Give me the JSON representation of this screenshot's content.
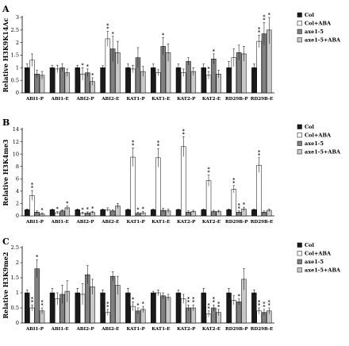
{
  "colors": {
    "Col": "#1a1a1a",
    "Col+ABA": "#ffffff",
    "axe1-5": "#808080",
    "axe1-5+ABA": "#c8c8c8"
  },
  "chart_data": [
    {
      "panel": "A",
      "type": "bar",
      "ylabel": "Relative H3K9K14Ac",
      "ylim": [
        0,
        3
      ],
      "yticks": [
        "0",
        "0.5",
        "1",
        "1.5",
        "2",
        "2.5",
        "3"
      ],
      "legend_position": "right",
      "categories": [
        "ABI1-P",
        "ABI1-E",
        "ABI2-P",
        "ABI2-E",
        "KAT1-P",
        "KAT1-E",
        "KAT2-P",
        "KAT2-E",
        "RD29B-P",
        "RD29B-E"
      ],
      "series": [
        {
          "name": "Col",
          "values": [
            1,
            1,
            1,
            1,
            1,
            1,
            1,
            1,
            1,
            1
          ],
          "errors": [
            0.15,
            0.1,
            0.1,
            0.08,
            0.15,
            0.15,
            0.15,
            0.15,
            0.25,
            0.15
          ],
          "stars": [
            "",
            "",
            "",
            "",
            "",
            "",
            "",
            "",
            "",
            ""
          ]
        },
        {
          "name": "Col+ABA",
          "values": [
            1.3,
            0.95,
            0.75,
            2.15,
            0.95,
            0.8,
            0.8,
            0.7,
            1.4,
            2.05
          ],
          "errors": [
            0.25,
            0.15,
            0.25,
            0.3,
            0.15,
            0.12,
            0.15,
            0.15,
            0.35,
            0.25
          ],
          "stars": [
            "",
            "",
            "*",
            "**",
            "",
            "",
            "",
            "*",
            "",
            "**"
          ]
        },
        {
          "name": "axe1-5",
          "values": [
            0.75,
            1.0,
            0.8,
            1.75,
            1.4,
            1.85,
            1.25,
            1.35,
            1.6,
            2.35
          ],
          "errors": [
            0.15,
            0.15,
            0.15,
            0.5,
            0.4,
            0.35,
            0.15,
            0.2,
            0.3,
            0.45
          ],
          "stars": [
            "",
            "",
            "*",
            "*",
            "",
            "*",
            "",
            "*",
            "",
            "**"
          ]
        },
        {
          "name": "axe1-5+ABA",
          "values": [
            0.7,
            0.8,
            0.45,
            1.6,
            0.85,
            1.6,
            0.85,
            0.75,
            1.55,
            2.5
          ],
          "errors": [
            0.15,
            0.15,
            0.15,
            0.45,
            0.2,
            0.35,
            0.15,
            0.15,
            0.3,
            0.55
          ],
          "stars": [
            "",
            "",
            "*",
            "",
            "",
            "",
            "",
            "",
            "",
            "*"
          ]
        }
      ]
    },
    {
      "panel": "B",
      "type": "bar",
      "ylabel": "Relative H3K4me3",
      "ylim": [
        0,
        14
      ],
      "yticks": [
        "0",
        "2",
        "4",
        "6",
        "8",
        "10",
        "12",
        "14"
      ],
      "legend_position": "right",
      "categories": [
        "ABI1-P",
        "ABI1-E",
        "ABI2-P",
        "ABI2-E",
        "KAT1-P",
        "KAT1-E",
        "KAT2-P",
        "KAT2-E",
        "RD29B-P",
        "RD29B-E"
      ],
      "series": [
        {
          "name": "Col",
          "values": [
            1,
            1,
            1,
            1,
            1,
            1,
            1,
            1,
            1,
            1
          ],
          "errors": [
            0.1,
            0.1,
            0.1,
            0.1,
            0.1,
            0.1,
            0.1,
            0.1,
            0.1,
            0.1
          ],
          "stars": [
            "",
            "",
            "",
            "",
            "",
            "",
            "",
            "",
            "",
            ""
          ]
        },
        {
          "name": "Col+ABA",
          "values": [
            3.3,
            0.5,
            0.4,
            1.0,
            9.5,
            9.4,
            11.2,
            5.7,
            4.3,
            8.2
          ],
          "errors": [
            0.8,
            0.2,
            0.2,
            0.3,
            1.5,
            1.5,
            1.6,
            0.9,
            0.6,
            1.2
          ],
          "stars": [
            "**",
            "*",
            "*",
            "",
            "**",
            "**",
            "**",
            "**",
            "**",
            "**"
          ]
        },
        {
          "name": "axe1-5",
          "values": [
            0.6,
            0.8,
            0.45,
            0.8,
            0.4,
            0.9,
            0.6,
            0.7,
            0.6,
            0.6
          ],
          "errors": [
            0.2,
            0.2,
            0.2,
            0.2,
            0.2,
            0.3,
            0.2,
            0.2,
            0.2,
            0.2
          ],
          "stars": [
            "",
            "",
            "*",
            "",
            "*",
            "",
            "",
            "",
            "**",
            ""
          ]
        },
        {
          "name": "axe1-5+ABA",
          "values": [
            0.3,
            1.3,
            0.55,
            1.6,
            0.5,
            0.8,
            0.7,
            0.7,
            1.1,
            0.9
          ],
          "errors": [
            0.2,
            0.3,
            0.2,
            0.4,
            0.2,
            0.3,
            0.2,
            0.2,
            0.3,
            0.2
          ],
          "stars": [
            "*",
            "*",
            "*",
            "",
            "*",
            "",
            "",
            "",
            "*",
            ""
          ]
        }
      ]
    },
    {
      "panel": "C",
      "type": "bar",
      "ylabel": "Relative H3K9me2",
      "ylim": [
        0,
        2.5
      ],
      "yticks": [
        "0",
        "0.5",
        "1",
        "1.5",
        "2",
        "2.5"
      ],
      "legend_position": "right",
      "categories": [
        "ABI1-P",
        "ABI1-E",
        "ABI2-P",
        "ABI2-E",
        "KAT1-P",
        "KAT1-E",
        "KAT2-P",
        "KAT2-E",
        "RD29B-P",
        "RD29B-E"
      ],
      "series": [
        {
          "name": "Col",
          "values": [
            1,
            1,
            1,
            1,
            1,
            1,
            1,
            1,
            1,
            1
          ],
          "errors": [
            0.1,
            0.15,
            0.15,
            0.1,
            0.15,
            0.05,
            0.1,
            0.15,
            0.15,
            0.1
          ],
          "stars": [
            "",
            "",
            "",
            "",
            "",
            "",
            "",
            "",
            "",
            ""
          ]
        },
        {
          "name": "Col+ABA",
          "values": [
            0.5,
            0.8,
            0.95,
            0.35,
            0.55,
            1.0,
            0.8,
            0.3,
            0.75,
            0.4
          ],
          "errors": [
            0.1,
            0.2,
            0.35,
            0.1,
            0.15,
            0.1,
            0.15,
            0.1,
            0.15,
            0.1
          ],
          "stars": [
            "**",
            "",
            "",
            "**",
            "*",
            "",
            "",
            "**",
            "",
            "**"
          ]
        },
        {
          "name": "axe1-5",
          "values": [
            1.8,
            0.95,
            1.6,
            1.55,
            0.4,
            0.9,
            0.5,
            0.5,
            0.7,
            0.35
          ],
          "errors": [
            0.3,
            0.3,
            0.3,
            0.15,
            0.1,
            0.1,
            0.1,
            0.1,
            0.1,
            0.1
          ],
          "stars": [
            "*",
            "",
            "",
            "",
            "*",
            "",
            "**",
            "**",
            "*",
            "**"
          ]
        },
        {
          "name": "axe1-5+ABA",
          "values": [
            0.4,
            1.05,
            1.2,
            1.25,
            0.45,
            0.85,
            0.5,
            0.35,
            1.45,
            0.4
          ],
          "errors": [
            0.1,
            0.35,
            0.25,
            0.3,
            0.1,
            0.1,
            0.1,
            0.1,
            0.35,
            0.1
          ],
          "stars": [
            "**",
            "",
            "",
            "",
            "*",
            "",
            "**",
            "**",
            "",
            "**"
          ]
        }
      ]
    }
  ]
}
